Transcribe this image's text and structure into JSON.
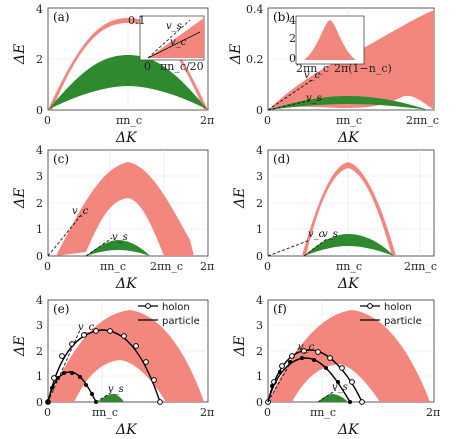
{
  "panels": [
    {
      "label": "(a)",
      "ylim": [
        0,
        4
      ],
      "yticks": [
        "0",
        "2",
        "4"
      ],
      "xticks": [
        "0",
        "πn_c",
        "2π"
      ],
      "xlabel": "ΔK",
      "ylabel": "ΔE",
      "annotations": [
        "0.1",
        "v_s",
        "v_c",
        "0",
        "πn_c/20"
      ]
    },
    {
      "label": "(b)",
      "ylim": [
        0,
        0.4
      ],
      "yticks": [
        "0",
        "0.2",
        "0.4"
      ],
      "xticks": [
        "0",
        "πn_c",
        "2πn_c"
      ],
      "xlabel": "ΔK",
      "ylabel": "ΔE",
      "annotations": [
        "v_c",
        "v_s",
        "4",
        "2",
        "0",
        "2πn_c",
        "2π(1−n_c)"
      ]
    },
    {
      "label": "(c)",
      "ylim": [
        0,
        4
      ],
      "yticks": [
        "0",
        "1",
        "2",
        "3",
        "4"
      ],
      "xticks": [
        "0",
        "πn_c",
        "2πn_c",
        "2π"
      ],
      "xlabel": "ΔK",
      "ylabel": "ΔE",
      "annotations": [
        "v_c",
        "v_s"
      ]
    },
    {
      "label": "(d)",
      "ylim": [
        0,
        4
      ],
      "yticks": [
        "0",
        "1",
        "2",
        "3",
        "4"
      ],
      "xticks": [
        "0",
        "πn_c",
        "2πn_c"
      ],
      "xlabel": "ΔK",
      "ylabel": "ΔE",
      "annotations": [
        "v_c",
        "v_s"
      ]
    },
    {
      "label": "(e)",
      "ylim": [
        0,
        4
      ],
      "yticks": [
        "0",
        "1",
        "2",
        "3",
        "4"
      ],
      "xticks": [
        "0",
        "πn_c",
        "2π"
      ],
      "xlabel": "ΔK",
      "ylabel": "ΔE",
      "annotations": [
        "v_c",
        "v_s"
      ],
      "legend": [
        "holon",
        "particle"
      ]
    },
    {
      "label": "(f)",
      "ylim": [
        0,
        4
      ],
      "yticks": [
        "0",
        "1",
        "2",
        "3",
        "4"
      ],
      "xticks": [
        "0",
        "πn_c",
        "2π"
      ],
      "xlabel": "ΔK",
      "ylabel": "ΔE",
      "annotations": [
        "v_c",
        "v_s"
      ],
      "legend": [
        "holon",
        "particle"
      ]
    }
  ],
  "colors": {
    "pink": "#f4877d",
    "green": "#2f8a2f",
    "black": "#000000",
    "grid": "#e2e2e2"
  }
}
